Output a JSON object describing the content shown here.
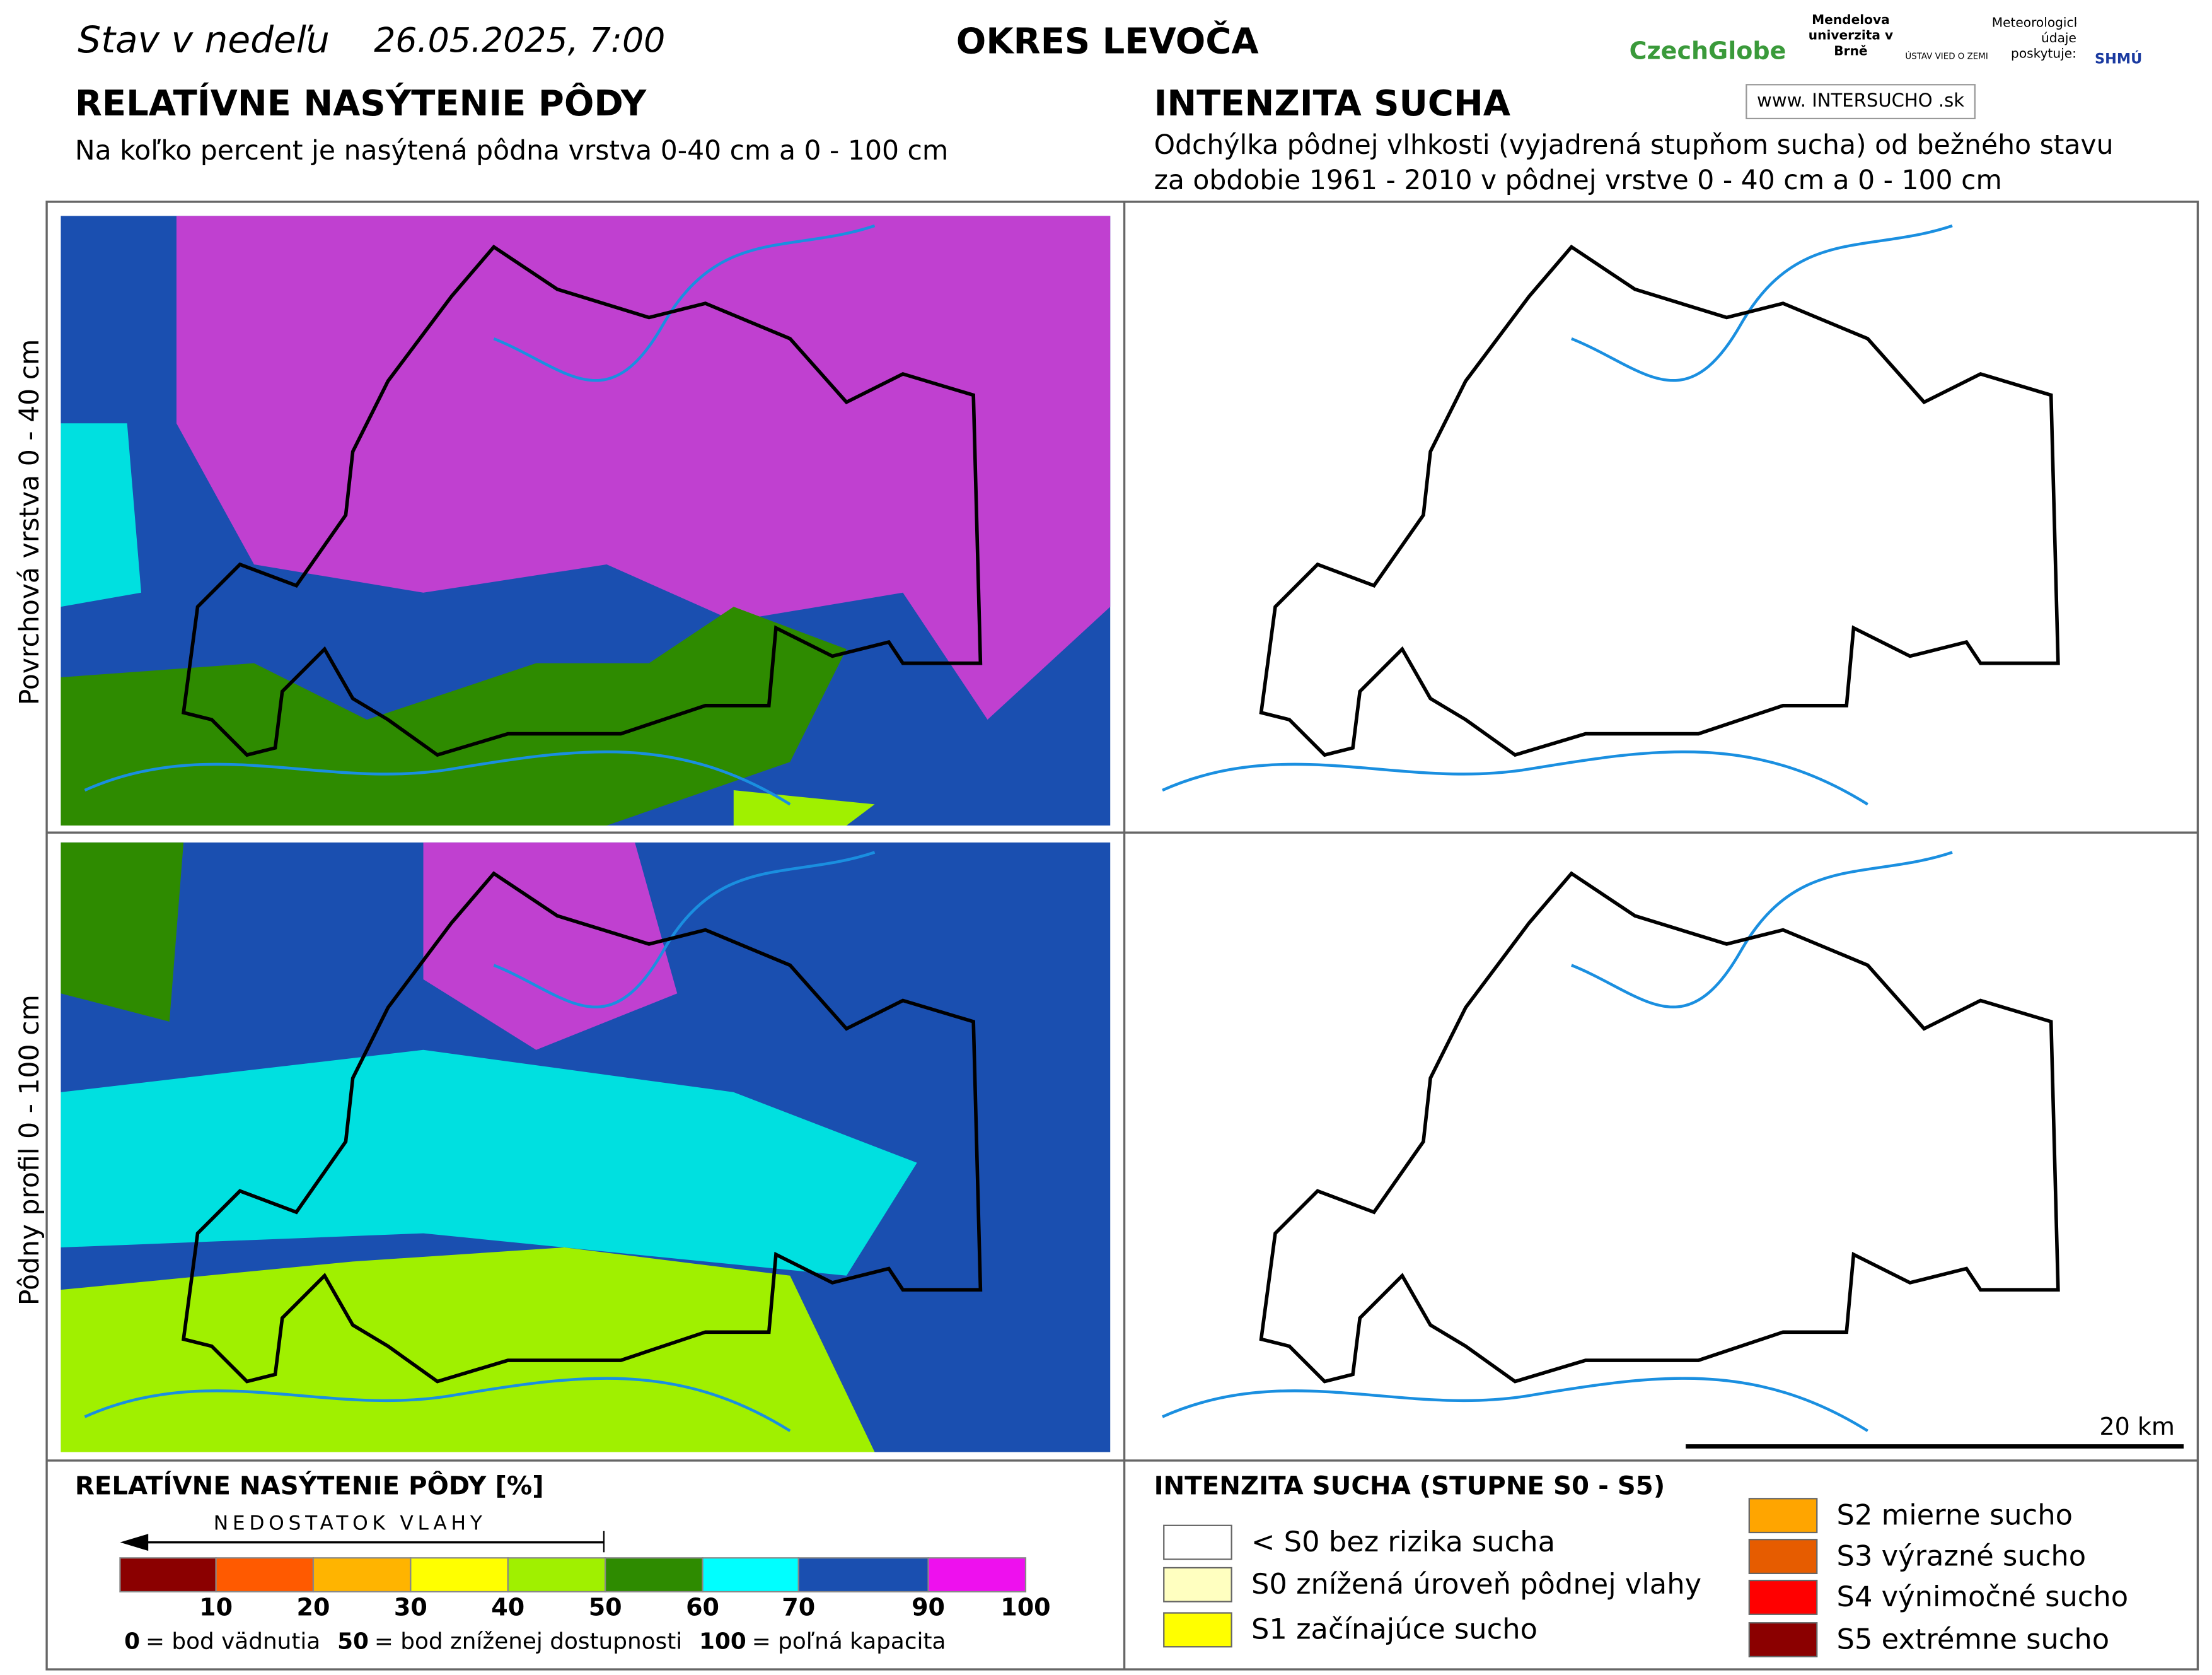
{
  "header": {
    "date_prefix": "Stav v nedeľu",
    "date": "26.05.2025, 7:00",
    "district": "OKRES  LEVOČA",
    "logos": {
      "czechglobe": "CzechGlobe",
      "mendel": "Mendelova univerzita v Brně",
      "uvz": "ÚSTAV VIED O ZEMI",
      "shmu_note": "Meteorologické údaje poskytuje:",
      "shmu": "SHMÚ",
      "web": "www. INTERSUCHO .sk"
    }
  },
  "left": {
    "title": "RELATÍVNE NASÝTENIE PÔDY",
    "subtitle": "Na koľko percent je nasýtená pôdna vrstva 0-40 cm a 0 - 100 cm"
  },
  "right": {
    "title": "INTENZITA SUCHA",
    "subtitle": [
      "Odchýlka pôdnej vlhkosti (vyjadrená stupňom sucha) od bežného stavu",
      "za obdobie 1961 - 2010 v pôdnej vrstve 0 - 40 cm a 0 - 100 cm"
    ]
  },
  "row_labels": [
    "Povrchová vrstva 0 - 40 cm",
    "Pôdny profil 0 - 100 cm"
  ],
  "scale_label": "20 km",
  "legend_left": {
    "title": "RELATÍVNE NASÝTENIE PÔDY [%]",
    "arrow_label": "NEDOSTATOK VLAHY",
    "colors": [
      "#8b0000",
      "#ff5a00",
      "#ffb400",
      "#ffff00",
      "#a0f000",
      "#2e8b00",
      "#00ffff",
      "#1a4fb0",
      "#ee10ee"
    ],
    "ticks": [
      10,
      20,
      30,
      40,
      50,
      60,
      70,
      90,
      100
    ],
    "notes": [
      {
        "key": "0",
        "text": "= bod vädnutia"
      },
      {
        "key": "50",
        "text": "= bod zníženej dostupnosti"
      },
      {
        "key": "100",
        "text": "= poľná kapacita"
      }
    ]
  },
  "legend_right": {
    "title": "INTENZITA SUCHA (STUPNE S0 - S5)",
    "items": [
      {
        "label": "< S0 bez rizika sucha",
        "color": "#ffffff"
      },
      {
        "label": "S0 znížená úroveň pôdnej vlahy",
        "color": "#ffffc0"
      },
      {
        "label": "S1 začínajúce sucho",
        "color": "#ffff00"
      },
      {
        "label": "S2 mierne sucho",
        "color": "#ffa500"
      },
      {
        "label": "S3 výrazné sucho",
        "color": "#e65c00"
      },
      {
        "label": "S4 výnimočné sucho",
        "color": "#ff0000"
      },
      {
        "label": "S5 extrémne sucho",
        "color": "#8b0000"
      }
    ]
  }
}
